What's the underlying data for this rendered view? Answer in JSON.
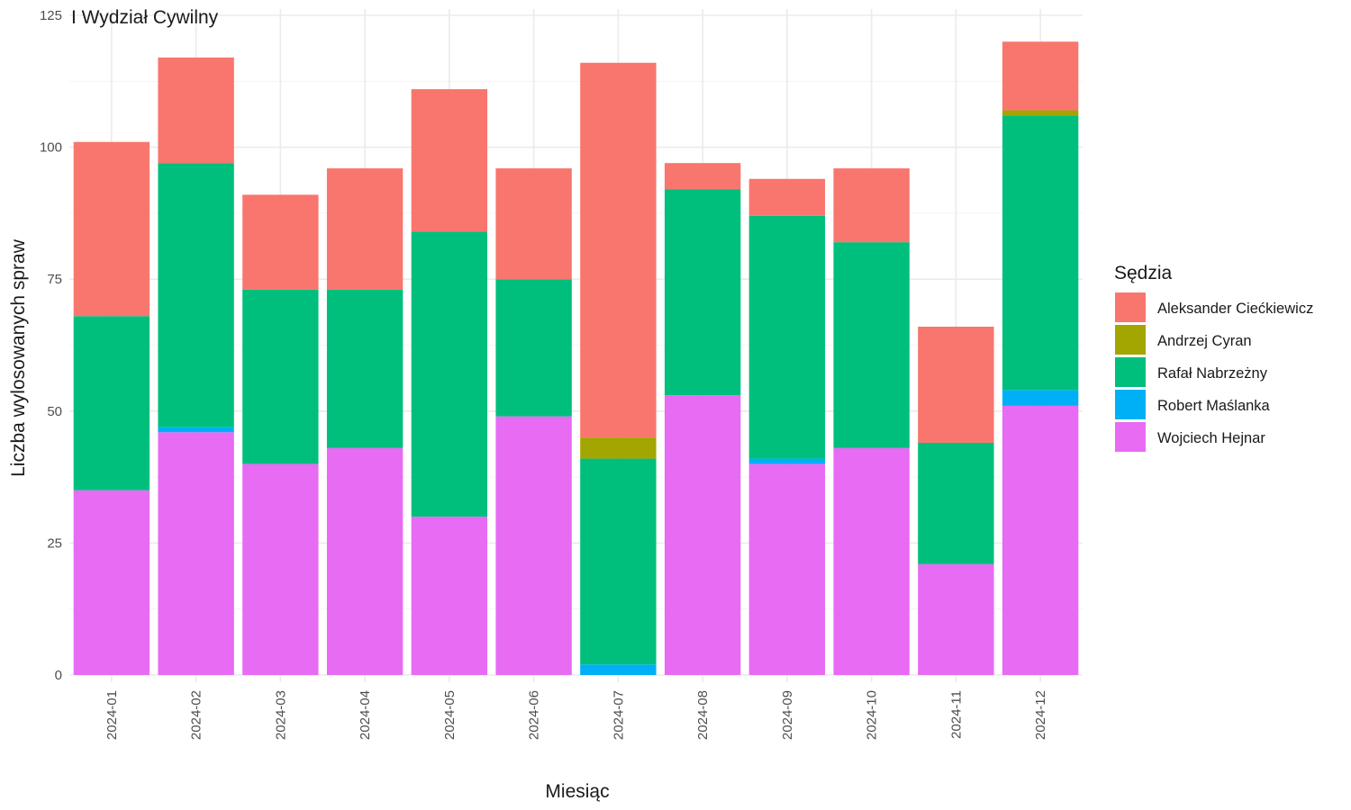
{
  "chart_data": {
    "type": "bar",
    "stacked": true,
    "title": "I Wydział Cywilny",
    "xlabel": "Miesiąc",
    "ylabel": "Liczba wylosowanych spraw",
    "ylim": [
      0,
      125
    ],
    "yticks": [
      0,
      25,
      50,
      75,
      100,
      125
    ],
    "grid": true,
    "legend_title": "Sędzia",
    "legend_position": "right",
    "categories": [
      "2024-01",
      "2024-02",
      "2024-03",
      "2024-04",
      "2024-05",
      "2024-06",
      "2024-07",
      "2024-08",
      "2024-09",
      "2024-10",
      "2024-11",
      "2024-12"
    ],
    "series": [
      {
        "name": "Aleksander Ciećkiewicz",
        "color": "#F8766D",
        "values": [
          33,
          20,
          18,
          23,
          27,
          21,
          71,
          5,
          7,
          14,
          22,
          13
        ]
      },
      {
        "name": "Andrzej Cyran",
        "color": "#A3A500",
        "values": [
          0,
          0,
          0,
          0,
          0,
          0,
          4,
          0,
          0,
          0,
          0,
          1
        ]
      },
      {
        "name": "Rafał Nabrzeżny",
        "color": "#00BF7D",
        "values": [
          33,
          50,
          33,
          30,
          54,
          26,
          39,
          39,
          46,
          39,
          23,
          52
        ]
      },
      {
        "name": "Robert Maślanka",
        "color": "#00B0F6",
        "values": [
          0,
          1,
          0,
          0,
          0,
          0,
          2,
          0,
          1,
          0,
          0,
          3
        ]
      },
      {
        "name": "Wojciech Hejnar",
        "color": "#E76BF3",
        "values": [
          35,
          46,
          40,
          43,
          30,
          49,
          0,
          53,
          40,
          43,
          21,
          51
        ]
      }
    ],
    "stack_order_bottom_to_top": [
      "Wojciech Hejnar",
      "Robert Maślanka",
      "Rafał Nabrzeżny",
      "Andrzej Cyran",
      "Aleksander Ciećkiewicz"
    ]
  }
}
